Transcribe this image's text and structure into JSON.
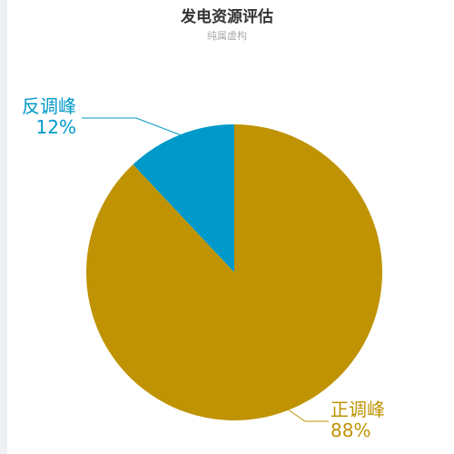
{
  "chart_data": {
    "type": "pie",
    "title": "发电资源评估",
    "subtitle": "纯属虚构",
    "slices": [
      {
        "name": "反调峰",
        "value": 12,
        "label": "12%",
        "color": "#0099c9"
      },
      {
        "name": "正调峰",
        "value": 88,
        "label": "88%",
        "color": "#bf9303"
      }
    ],
    "legend": "none"
  }
}
